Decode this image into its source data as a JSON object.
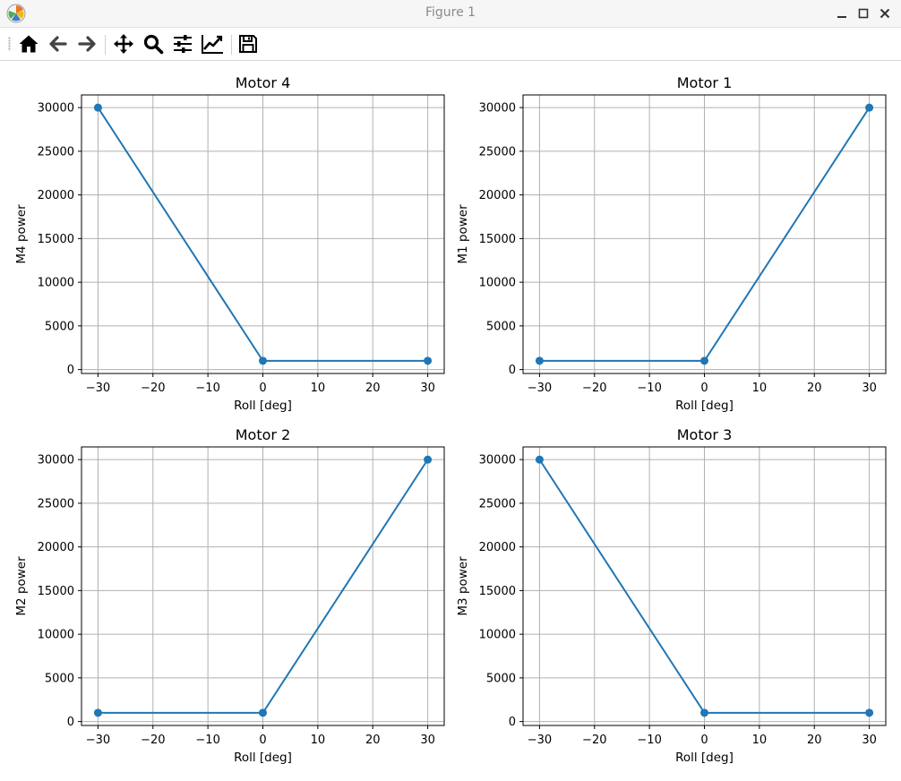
{
  "window": {
    "title": "Figure 1"
  },
  "toolbar": {
    "buttons": [
      {
        "name": "home-button",
        "icon": "home-icon"
      },
      {
        "name": "back-button",
        "icon": "arrow-left-icon"
      },
      {
        "name": "forward-button",
        "icon": "arrow-right-icon"
      },
      {
        "name": "pan-button",
        "icon": "move-icon"
      },
      {
        "name": "zoom-button",
        "icon": "magnifier-icon"
      },
      {
        "name": "configure-subplots-button",
        "icon": "sliders-icon"
      },
      {
        "name": "edit-axis-button",
        "icon": "line-chart-icon"
      },
      {
        "name": "save-button",
        "icon": "floppy-disk-icon"
      }
    ]
  },
  "colors": {
    "series": "#1f77b4",
    "grid": "#b0b0b0"
  },
  "chart_data": [
    {
      "type": "line",
      "title": "Motor 4",
      "xlabel": "Roll [deg]",
      "ylabel": "M4 power",
      "x": [
        -30,
        0,
        30
      ],
      "y": [
        30000,
        1000,
        1000
      ],
      "xlim": [
        -33,
        33
      ],
      "ylim": [
        -450,
        31450
      ],
      "xticks": [
        -30,
        -20,
        -10,
        0,
        10,
        20,
        30
      ],
      "xtick_labels": [
        "−30",
        "−20",
        "−10",
        "0",
        "10",
        "20",
        "30"
      ],
      "yticks": [
        0,
        5000,
        10000,
        15000,
        20000,
        25000,
        30000
      ],
      "ytick_labels": [
        "0",
        "5000",
        "10000",
        "15000",
        "20000",
        "25000",
        "30000"
      ],
      "grid": true,
      "marker": "circle"
    },
    {
      "type": "line",
      "title": "Motor 1",
      "xlabel": "Roll [deg]",
      "ylabel": "M1 power",
      "x": [
        -30,
        0,
        30
      ],
      "y": [
        1000,
        1000,
        30000
      ],
      "xlim": [
        -33,
        33
      ],
      "ylim": [
        -450,
        31450
      ],
      "xticks": [
        -30,
        -20,
        -10,
        0,
        10,
        20,
        30
      ],
      "xtick_labels": [
        "−30",
        "−20",
        "−10",
        "0",
        "10",
        "20",
        "30"
      ],
      "yticks": [
        0,
        5000,
        10000,
        15000,
        20000,
        25000,
        30000
      ],
      "ytick_labels": [
        "0",
        "5000",
        "10000",
        "15000",
        "20000",
        "25000",
        "30000"
      ],
      "grid": true,
      "marker": "circle"
    },
    {
      "type": "line",
      "title": "Motor 2",
      "xlabel": "Roll [deg]",
      "ylabel": "M2 power",
      "x": [
        -30,
        0,
        30
      ],
      "y": [
        1000,
        1000,
        30000
      ],
      "xlim": [
        -33,
        33
      ],
      "ylim": [
        -450,
        31450
      ],
      "xticks": [
        -30,
        -20,
        -10,
        0,
        10,
        20,
        30
      ],
      "xtick_labels": [
        "−30",
        "−20",
        "−10",
        "0",
        "10",
        "20",
        "30"
      ],
      "yticks": [
        0,
        5000,
        10000,
        15000,
        20000,
        25000,
        30000
      ],
      "ytick_labels": [
        "0",
        "5000",
        "10000",
        "15000",
        "20000",
        "25000",
        "30000"
      ],
      "grid": true,
      "marker": "circle"
    },
    {
      "type": "line",
      "title": "Motor 3",
      "xlabel": "Roll [deg]",
      "ylabel": "M3 power",
      "x": [
        -30,
        0,
        30
      ],
      "y": [
        30000,
        1000,
        1000
      ],
      "xlim": [
        -33,
        33
      ],
      "ylim": [
        -450,
        31450
      ],
      "xticks": [
        -30,
        -20,
        -10,
        0,
        10,
        20,
        30
      ],
      "xtick_labels": [
        "−30",
        "−20",
        "−10",
        "0",
        "10",
        "20",
        "30"
      ],
      "yticks": [
        0,
        5000,
        10000,
        15000,
        20000,
        25000,
        30000
      ],
      "ytick_labels": [
        "0",
        "5000",
        "10000",
        "15000",
        "20000",
        "25000",
        "30000"
      ],
      "grid": true,
      "marker": "circle"
    }
  ]
}
